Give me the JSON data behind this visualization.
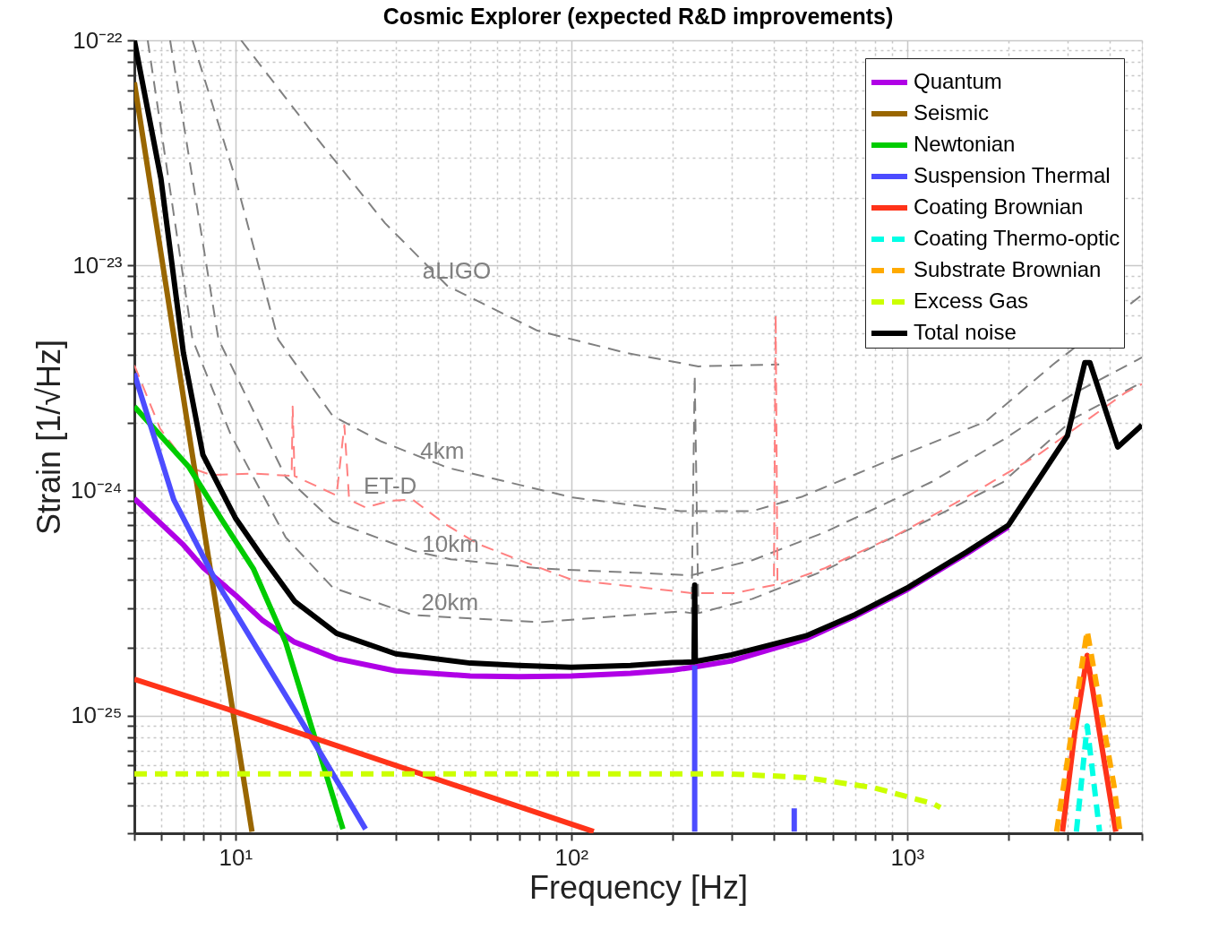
{
  "chart_data": {
    "type": "line",
    "title": "Cosmic Explorer (expected R&D improvements)",
    "xlabel": "Frequency [Hz]",
    "ylabel": "Strain [1/√Hz]",
    "log": "xy",
    "grid": true,
    "legend": "top right",
    "xlim": [
      5,
      5000
    ],
    "ylim": [
      3e-26,
      1e-22
    ],
    "xticks": [
      {
        "value": 5,
        "label": null
      },
      {
        "value": 6,
        "label": null
      },
      {
        "value": 7,
        "label": null
      },
      {
        "value": 8,
        "label": null
      },
      {
        "value": 9,
        "label": null
      },
      {
        "value": 10,
        "label": "10¹"
      },
      {
        "value": 20,
        "label": null
      },
      {
        "value": 30,
        "label": null
      },
      {
        "value": 40,
        "label": null
      },
      {
        "value": 50,
        "label": null
      },
      {
        "value": 60,
        "label": null
      },
      {
        "value": 70,
        "label": null
      },
      {
        "value": 80,
        "label": null
      },
      {
        "value": 90,
        "label": null
      },
      {
        "value": 100,
        "label": "10²"
      },
      {
        "value": 200,
        "label": null
      },
      {
        "value": 300,
        "label": null
      },
      {
        "value": 400,
        "label": null
      },
      {
        "value": 500,
        "label": null
      },
      {
        "value": 600,
        "label": null
      },
      {
        "value": 700,
        "label": null
      },
      {
        "value": 800,
        "label": null
      },
      {
        "value": 900,
        "label": null
      },
      {
        "value": 1000,
        "label": "10³"
      },
      {
        "value": 2000,
        "label": null
      },
      {
        "value": 3000,
        "label": null
      },
      {
        "value": 4000,
        "label": null
      },
      {
        "value": 5000,
        "label": null
      }
    ],
    "yticks": [
      {
        "value": 3e-26,
        "label": null
      },
      {
        "value": 4e-26,
        "label": null
      },
      {
        "value": 5e-26,
        "label": null
      },
      {
        "value": 6e-26,
        "label": null
      },
      {
        "value": 7e-26,
        "label": null
      },
      {
        "value": 8e-26,
        "label": null
      },
      {
        "value": 9e-26,
        "label": null
      },
      {
        "value": 1e-25,
        "label": "10⁻²⁵"
      },
      {
        "value": 2e-25,
        "label": null
      },
      {
        "value": 3e-25,
        "label": null
      },
      {
        "value": 4e-25,
        "label": null
      },
      {
        "value": 5e-25,
        "label": null
      },
      {
        "value": 6e-25,
        "label": null
      },
      {
        "value": 7e-25,
        "label": null
      },
      {
        "value": 8e-25,
        "label": null
      },
      {
        "value": 9e-25,
        "label": null
      },
      {
        "value": 1e-24,
        "label": "10⁻²⁴"
      },
      {
        "value": 2e-24,
        "label": null
      },
      {
        "value": 3e-24,
        "label": null
      },
      {
        "value": 4e-24,
        "label": null
      },
      {
        "value": 5e-24,
        "label": null
      },
      {
        "value": 6e-24,
        "label": null
      },
      {
        "value": 7e-24,
        "label": null
      },
      {
        "value": 8e-24,
        "label": null
      },
      {
        "value": 9e-24,
        "label": null
      },
      {
        "value": 1e-23,
        "label": "10⁻²³"
      },
      {
        "value": 2e-23,
        "label": null
      },
      {
        "value": 3e-23,
        "label": null
      },
      {
        "value": 4e-23,
        "label": null
      },
      {
        "value": 5e-23,
        "label": null
      },
      {
        "value": 6e-23,
        "label": null
      },
      {
        "value": 7e-23,
        "label": null
      },
      {
        "value": 8e-23,
        "label": null
      },
      {
        "value": 9e-23,
        "label": null
      },
      {
        "value": 1e-22,
        "label": "10⁻²²"
      }
    ],
    "series": [
      {
        "color": "#808080",
        "line_style": "dashed",
        "x": [
          10.4,
          17.1,
          27.9,
          42.8,
          79.3,
          146,
          239,
          416
        ],
        "values": [
          1e-22,
          3.83e-23,
          1.54e-23,
          8.1e-24,
          5.13e-24,
          4.08e-24,
          3.56e-24,
          3.63e-24
        ]
      },
      {
        "color": "#808080",
        "line_style": "dashed",
        "x": [
          7.45,
          10,
          13.4,
          19.5,
          27.2,
          41.3,
          42.1,
          101,
          211,
          346,
          488,
          923,
          1710,
          2720,
          5000
        ],
        "values": [
          1e-22,
          2.43e-23,
          4.69e-24,
          2.14e-24,
          1.65e-24,
          1.29e-24,
          1.27e-24,
          9.3e-25,
          8.1e-25,
          8.1e-25,
          9.4e-25,
          1.4e-24,
          2.02e-24,
          3.63e-24,
          7.4e-24
        ]
      },
      {
        "color": "#808080",
        "line_style": "dashed",
        "x": [
          6.39,
          8.9,
          14.1,
          19.5,
          33.7,
          43.7,
          81.2,
          228,
          346,
          565,
          1180,
          1930,
          3150,
          5000
        ],
        "values": [
          1e-22,
          4.69e-24,
          1.15e-24,
          7.3e-25,
          5.4e-25,
          4.95e-25,
          4.5e-25,
          4.2e-25,
          4.9e-25,
          6.5e-25,
          1.09e-24,
          1.68e-24,
          2.71e-24,
          3.9e-24
        ]
      },
      {
        "color": "#808080",
        "line_style": "dashed",
        "x": [
          5.48,
          7.45,
          9.7,
          14.1,
          19.5,
          33.7,
          43.5,
          81.2,
          211,
          228,
          233,
          239,
          346,
          565,
          1180,
          1930,
          3150,
          5000
        ],
        "values": [
          1e-22,
          4.69e-24,
          1.76e-24,
          6.2e-25,
          3.7e-25,
          2.8e-25,
          2.73e-25,
          2.6e-25,
          2.9e-25,
          2.85e-25,
          3.25e-24,
          2.85e-25,
          3.3e-25,
          4.4e-25,
          7.5e-25,
          1.09e-24,
          2.1e-24,
          3.02e-24
        ]
      },
      {
        "color": "#ff8080",
        "line_style": "dashed",
        "x": [
          5,
          5.97,
          7.27,
          8.47,
          11.3,
          14.7,
          14.8,
          15,
          20,
          21.1,
          21.8,
          24.4,
          28.9,
          33.7,
          42.1,
          52.5,
          72.7,
          101,
          165,
          228,
          306,
          401,
          406,
          411,
          565,
          923,
          1510,
          2470,
          4450,
          5000
        ],
        "values": [
          3.6e-24,
          1.88e-24,
          1.27e-24,
          1.17e-24,
          1.19e-24,
          1.16e-24,
          2.36e-24,
          1.16e-24,
          9.5e-25,
          1.95e-24,
          9.1e-25,
          8.4e-25,
          9e-25,
          9.1e-25,
          7.1e-25,
          5.8e-25,
          4.8e-25,
          4e-25,
          3.7e-25,
          3.5e-25,
          3.5e-25,
          3.8e-25,
          6.05e-24,
          3.8e-25,
          4.5e-25,
          6.3e-25,
          9.4e-25,
          1.45e-24,
          2.71e-24,
          2.97e-24
        ]
      },
      {
        "name": "Quantum",
        "color": "#b000e6",
        "line_style": "solid",
        "x": [
          5,
          7,
          8,
          10,
          12,
          15,
          20,
          30,
          50,
          70,
          100,
          150,
          200,
          230,
          300,
          500,
          700,
          1000,
          1500,
          2000
        ],
        "values": [
          9.2e-25,
          5.73e-25,
          4.56e-25,
          3.43e-25,
          2.66e-25,
          2.12e-25,
          1.79e-25,
          1.58e-25,
          1.5e-25,
          1.49e-25,
          1.5e-25,
          1.54e-25,
          1.59e-25,
          1.64e-25,
          1.75e-25,
          2.19e-25,
          2.76e-25,
          3.63e-25,
          5.23e-25,
          6.88e-25
        ]
      },
      {
        "name": "Seismic",
        "color": "#996600",
        "line_style": "solid",
        "x": [
          5,
          8,
          11.2
        ],
        "values": [
          6.5e-23,
          7.2e-25,
          3.05e-26
        ]
      },
      {
        "name": "Newtonian",
        "color": "#00cc00",
        "line_style": "solid",
        "x": [
          5,
          7.27,
          9.06,
          11.3,
          14.1,
          16.7,
          20.9
        ],
        "values": [
          2.36e-24,
          1.27e-24,
          7.5e-25,
          4.5e-25,
          2.12e-25,
          9.3e-26,
          3.13e-26
        ]
      },
      {
        "name": "Suspension Thermal",
        "color": "#4c4cff",
        "line_style": "solid",
        "x": [
          5,
          6.55,
          8.68,
          12.1,
          16.4,
          24.4,
          100,
          233,
          233,
          300,
          461,
          461
        ],
        "values": [
          3.31e-24,
          9.1e-25,
          4.05e-25,
          1.79e-25,
          8.5e-26,
          3.13e-26,
          null,
          3.05e-26,
          1.67e-25,
          null,
          3.05e-26,
          3.87e-26
        ]
      },
      {
        "name": "Coating Brownian",
        "color": "#ff3319",
        "line_style": "solid",
        "x": [
          5,
          10,
          116.6,
          300,
          2900,
          3155,
          3435,
          3740,
          4180
        ],
        "values": [
          1.45e-25,
          1.04e-25,
          3.05e-26,
          null,
          3.05e-26,
          8.4e-26,
          1.85e-25,
          8.4e-26,
          3.05e-26
        ]
      },
      {
        "name": "Coating Thermo-optic",
        "color": "#00ffe6",
        "line_style": "dashed",
        "x": [
          3190,
          3435,
          3740
        ],
        "values": [
          3.05e-26,
          9e-26,
          3.05e-26
        ]
      },
      {
        "name": "Substrate Brownian",
        "color": "#ffaa00",
        "line_style": "dashed",
        "x": [
          2786,
          3435,
          4130,
          4300
        ],
        "values": [
          3.05e-26,
          2.38e-25,
          4.86e-26,
          3.05e-26
        ]
      },
      {
        "name": "Excess Gas",
        "color": "#ccff00",
        "line_style": "dashed",
        "x": [
          5,
          300,
          500,
          800,
          1200,
          1256
        ],
        "values": [
          5.5e-26,
          5.5e-26,
          5.3e-26,
          4.77e-26,
          4.05e-26,
          3.9e-26
        ]
      },
      {
        "name": "Total noise",
        "color": "#000000",
        "line_style": "solid",
        "x": [
          5,
          6,
          7,
          8,
          10,
          12,
          15,
          20,
          30,
          50,
          70,
          100,
          150,
          200,
          232,
          233,
          234,
          300,
          500,
          700,
          1000,
          1500,
          2000,
          3000,
          3380,
          3500,
          4235,
          5000
        ],
        "values": [
          1e-22,
          2.43e-23,
          4.08e-24,
          1.44e-24,
          7.54e-25,
          5.08e-25,
          3.22e-25,
          2.32e-25,
          1.88e-25,
          1.71e-25,
          1.67e-25,
          1.64e-25,
          1.67e-25,
          1.72e-25,
          1.73e-25,
          3.8e-25,
          1.74e-25,
          1.86e-25,
          2.26e-25,
          2.81e-25,
          3.69e-25,
          5.32e-25,
          7e-25,
          1.75e-24,
          3.7e-24,
          3.7e-24,
          1.56e-24,
          1.95e-24
        ]
      }
    ],
    "annotations": [
      {
        "text": "aLIGO",
        "x": 45.6,
        "y": 8.1e-24
      },
      {
        "text": "4km",
        "x": 41.3,
        "y": 1.29e-24
      },
      {
        "text": "ET-D",
        "x": 28.9,
        "y": 9e-25
      },
      {
        "text": "10km",
        "x": 43.7,
        "y": 4.95e-25
      },
      {
        "text": "20km",
        "x": 43.5,
        "y": 2.73e-25
      }
    ]
  }
}
